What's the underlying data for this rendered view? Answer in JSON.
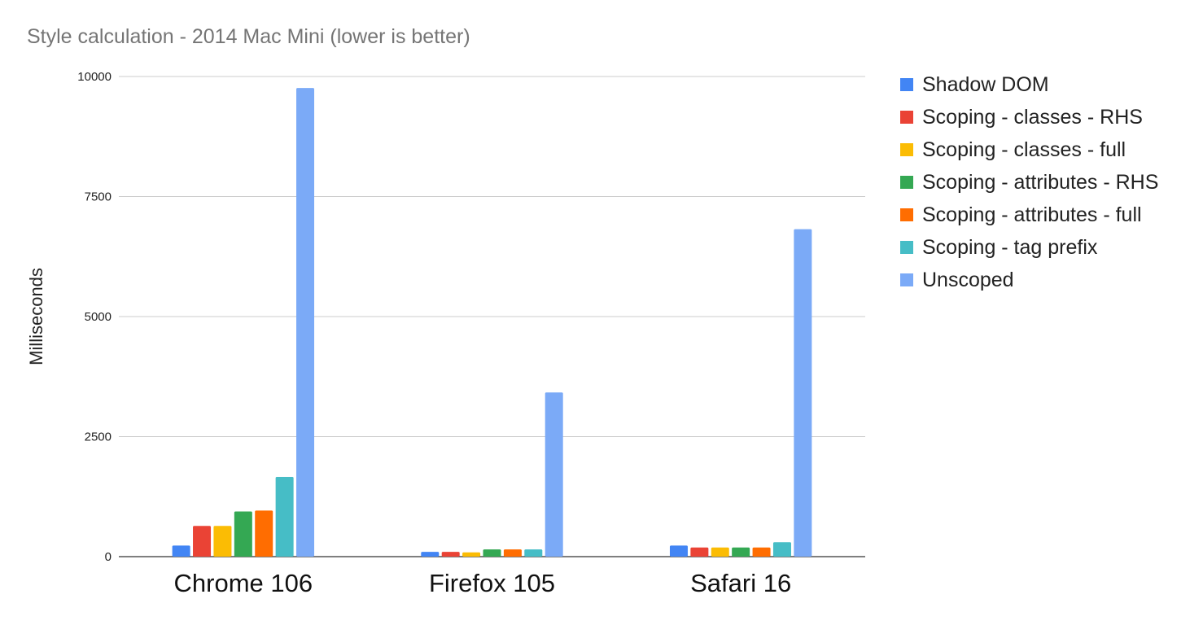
{
  "chart_data": {
    "type": "bar",
    "title": "Style calculation - 2014 Mac Mini (lower is better)",
    "xlabel": "",
    "ylabel": "Milliseconds",
    "ylim": [
      0,
      10000
    ],
    "yticks": [
      0,
      2500,
      5000,
      7500,
      10000
    ],
    "grid": true,
    "legend_position": "right",
    "categories": [
      "Chrome 106",
      "Firefox 105",
      "Safari 16"
    ],
    "series": [
      {
        "name": "Shadow DOM",
        "color": "#4285f4",
        "values": [
          230,
          100,
          230
        ]
      },
      {
        "name": "Scoping - classes - RHS",
        "color": "#ea4335",
        "values": [
          640,
          100,
          190
        ]
      },
      {
        "name": "Scoping - classes - full",
        "color": "#fbbc04",
        "values": [
          640,
          90,
          190
        ]
      },
      {
        "name": "Scoping - attributes - RHS",
        "color": "#34a853",
        "values": [
          940,
          150,
          190
        ]
      },
      {
        "name": "Scoping - attributes - full",
        "color": "#ff6d01",
        "values": [
          960,
          150,
          190
        ]
      },
      {
        "name": "Scoping - tag prefix",
        "color": "#46bdc6",
        "values": [
          1660,
          150,
          300
        ]
      },
      {
        "name": "Unscoped",
        "color": "#7baaf7",
        "values": [
          9760,
          3420,
          6820
        ]
      }
    ]
  }
}
